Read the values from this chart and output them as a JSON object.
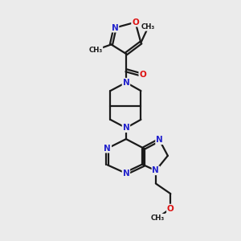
{
  "background_color": "#ebebeb",
  "bond_color": "#1a1a1a",
  "bond_width": 1.6,
  "N_color": "#2323cc",
  "O_color": "#dd1111",
  "font_size_atom": 7.5,
  "xlim": [
    0,
    10
  ],
  "ylim": [
    0,
    13
  ]
}
